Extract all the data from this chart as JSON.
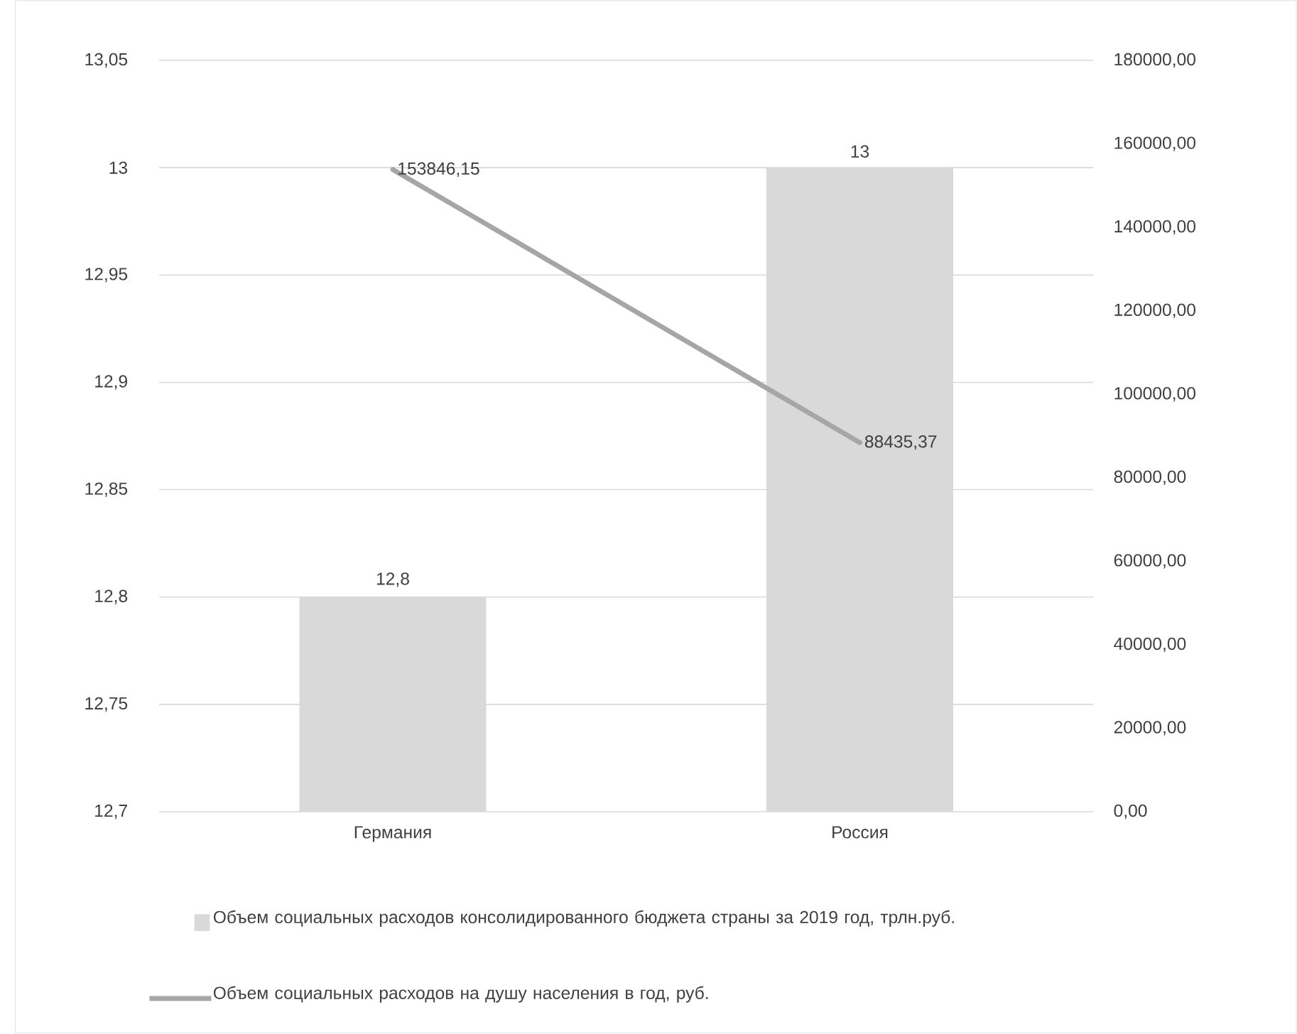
{
  "chart_data": {
    "type": "bar",
    "categories": [
      "Германия",
      "Россия"
    ],
    "series": [
      {
        "name": "Объем социальных расходов консолидированного бюджета страны за 2019 год, трлн.руб.",
        "color": "#d9d9d9",
        "values": [
          12.8,
          13
        ],
        "value_labels": [
          "12,8",
          "13"
        ]
      },
      {
        "name": "Объем социальных расходов на душу населения в год, руб.",
        "type": "line",
        "axis": "y2",
        "color": "#a6a6a6",
        "values": [
          153846.15,
          88435.37
        ],
        "value_labels": [
          "153846,15",
          "88435,37"
        ]
      }
    ],
    "ylim": [
      12.7,
      13.05
    ],
    "yticks": [
      {
        "value": 12.7,
        "label": "12,7"
      },
      {
        "value": 12.75,
        "label": "12,75"
      },
      {
        "value": 12.8,
        "label": "12,8"
      },
      {
        "value": 12.85,
        "label": "12,85"
      },
      {
        "value": 12.9,
        "label": "12,9"
      },
      {
        "value": 12.95,
        "label": "12,95"
      },
      {
        "value": 13,
        "label": "13"
      },
      {
        "value": 13.05,
        "label": "13,05"
      }
    ],
    "y2lim": [
      0,
      180000
    ],
    "y2ticks": [
      {
        "value": 0,
        "label": "0,00"
      },
      {
        "value": 20000,
        "label": "20000,00"
      },
      {
        "value": 40000,
        "label": "40000,00"
      },
      {
        "value": 60000,
        "label": "60000,00"
      },
      {
        "value": 80000,
        "label": "80000,00"
      },
      {
        "value": 100000,
        "label": "100000,00"
      },
      {
        "value": 120000,
        "label": "120000,00"
      },
      {
        "value": 140000,
        "label": "140000,00"
      },
      {
        "value": 160000,
        "label": "160000,00"
      },
      {
        "value": 180000,
        "label": "180000,00"
      }
    ],
    "grid": "y",
    "legend": "bottom"
  }
}
